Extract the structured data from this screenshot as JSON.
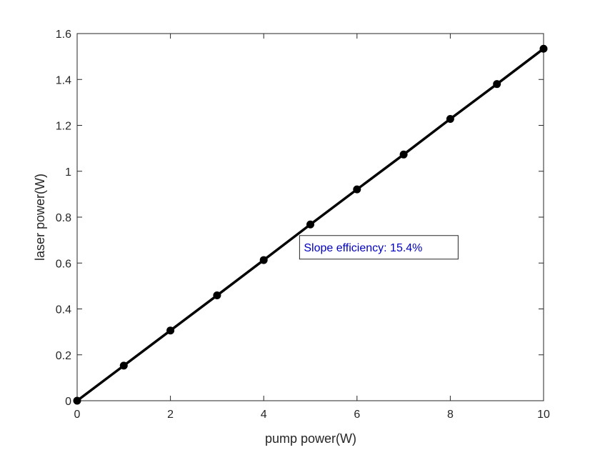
{
  "chart_data": {
    "type": "line",
    "title": "",
    "xlabel": "pump power(W)",
    "ylabel": "laser power(W)",
    "xlim": [
      0,
      10
    ],
    "ylim": [
      0,
      1.6
    ],
    "x_ticks": [
      "0",
      "2",
      "4",
      "6",
      "8",
      "10"
    ],
    "y_ticks": [
      "0",
      "0.2",
      "0.4",
      "0.6",
      "0.8",
      "1",
      "1.2",
      "1.4",
      "1.6"
    ],
    "grid": false,
    "series": [
      {
        "x": [
          0,
          1,
          2,
          3,
          4,
          5,
          6,
          7,
          8,
          9,
          10
        ],
        "y": [
          0,
          0.153,
          0.306,
          0.459,
          0.613,
          0.768,
          0.921,
          1.073,
          1.228,
          1.38,
          1.534
        ],
        "color": "#000000",
        "marker": "circle"
      }
    ],
    "annotation": {
      "text": "Slope efficiency: 15.4%",
      "color": "#0000c0",
      "x": 6.3,
      "y": 0.67
    }
  }
}
